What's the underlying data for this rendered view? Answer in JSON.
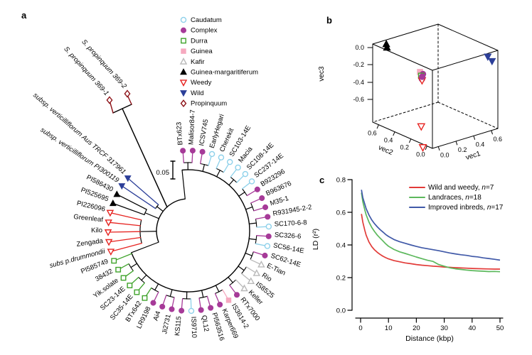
{
  "figure": {
    "panel_a": "a",
    "panel_b": "b",
    "panel_c": "c"
  },
  "legend_groups": [
    {
      "id": "caudatum",
      "label": "Caudatum",
      "shape": "circle",
      "filled": false,
      "color": "#8ed1ea"
    },
    {
      "id": "complex",
      "label": "Complex",
      "shape": "circle",
      "filled": true,
      "color": "#a63a98"
    },
    {
      "id": "durra",
      "label": "Durra",
      "shape": "square",
      "filled": false,
      "color": "#3fa32b"
    },
    {
      "id": "guinea",
      "label": "Guinea",
      "shape": "square",
      "filled": true,
      "color": "#f6a9bf"
    },
    {
      "id": "kafir",
      "label": "Kafir",
      "shape": "triangle",
      "filled": false,
      "color": "#b9b9b9"
    },
    {
      "id": "margaritiferum",
      "label": "Guinea-margaritiferum",
      "shape": "triangle",
      "filled": true,
      "color": "#000000"
    },
    {
      "id": "weedy",
      "label": "Weedy",
      "shape": "triangle-down",
      "filled": false,
      "color": "#e62320"
    },
    {
      "id": "wild",
      "label": "Wild",
      "shape": "triangle-down",
      "filled": true,
      "color": "#2c3f99"
    },
    {
      "id": "propinquum",
      "label": "Propinquum",
      "shape": "diamond",
      "filled": false,
      "color": "#8c1016"
    }
  ],
  "chart_data": [
    {
      "type": "tree-circular",
      "panel": "a",
      "scale_bar": "0.05",
      "tips": [
        {
          "name": "BTx623",
          "group": "complex"
        },
        {
          "name": "Malisor84-7",
          "group": "complex"
        },
        {
          "name": "ICSV745",
          "group": "complex"
        },
        {
          "name": "EarlyHegari",
          "group": "caudatum"
        },
        {
          "name": "Cherekit",
          "group": "caudatum"
        },
        {
          "name": "SC103-14E",
          "group": "caudatum"
        },
        {
          "name": "Macia",
          "group": "caudatum"
        },
        {
          "name": "SC108-14E",
          "group": "caudatum"
        },
        {
          "name": "SC237-14E",
          "group": "caudatum"
        },
        {
          "name": "B923296",
          "group": "complex"
        },
        {
          "name": "B963676",
          "group": "complex"
        },
        {
          "name": "M35-1",
          "group": "complex"
        },
        {
          "name": "R931945-2-2",
          "group": "complex"
        },
        {
          "name": "SC170-6-8",
          "group": "caudatum"
        },
        {
          "name": "SC326-6",
          "group": "complex"
        },
        {
          "name": "SC56-14E",
          "group": "caudatum"
        },
        {
          "name": "SC62-14E",
          "group": "complex"
        },
        {
          "name": "E-Tian",
          "group": "kafir"
        },
        {
          "name": "Rio",
          "group": "kafir"
        },
        {
          "name": "IS8525",
          "group": "kafir"
        },
        {
          "name": "Keller",
          "group": "kafir"
        },
        {
          "name": "RTx7000",
          "group": "complex"
        },
        {
          "name": "IS3614-2",
          "group": "guinea"
        },
        {
          "name": "Karper669",
          "group": "complex"
        },
        {
          "name": "PI563516",
          "group": "complex"
        },
        {
          "name": "QL12",
          "group": "complex"
        },
        {
          "name": "IS9710",
          "group": "caudatum"
        },
        {
          "name": "KS115",
          "group": "complex"
        },
        {
          "name": "Ji2731",
          "group": "complex"
        },
        {
          "name": "Ai4",
          "group": "complex"
        },
        {
          "name": "LR9198",
          "group": "complex"
        },
        {
          "name": "BTx642",
          "group": "durra"
        },
        {
          "name": "SC35-14E",
          "group": "durra"
        },
        {
          "name": "SC23-14E",
          "group": "durra"
        },
        {
          "name": "Yik.solate",
          "group": "durra"
        },
        {
          "name": "38432",
          "group": "durra"
        },
        {
          "name": "PI585749",
          "group": "durra"
        },
        {
          "name": "subs p.drummondii",
          "group": "weedy",
          "italic": true
        },
        {
          "name": "Zengada",
          "group": "weedy"
        },
        {
          "name": "Kilo",
          "group": "weedy"
        },
        {
          "name": "Greenleaf",
          "group": "weedy"
        },
        {
          "name": "PI226096",
          "group": "weedy"
        },
        {
          "name": "PI525695",
          "group": "margaritiferum"
        },
        {
          "name": "PI586430",
          "group": "margaritiferum"
        },
        {
          "name": "subsp. verticilliflorum PI300119",
          "group": "wild",
          "italic": true
        },
        {
          "name": "subsp. verticilliflorum Aus TRCF 317961",
          "group": "wild",
          "italic": true
        }
      ],
      "outgroup": [
        {
          "name": "S. propinquum 369-1",
          "group": "propinquum",
          "italic": true
        },
        {
          "name": "S. propinquum 369-2",
          "group": "propinquum",
          "italic": true
        }
      ]
    },
    {
      "type": "scatter3d",
      "panel": "b",
      "axes": {
        "vec1": {
          "label": "vec1",
          "ticks": [
            "0.0",
            "0.2",
            "0.4",
            "0.6"
          ]
        },
        "vec2": {
          "label": "vec2",
          "ticks": [
            "0.6",
            "0.4",
            "0.2",
            "0.0"
          ]
        },
        "vec3": {
          "label": "vec3",
          "ticks": [
            "0.0",
            "-0.2",
            "-0.4",
            "-0.6"
          ]
        }
      },
      "points": [
        {
          "group": "margaritiferum",
          "v": [
            0.02,
            0.6,
            0.1
          ]
        },
        {
          "group": "margaritiferum",
          "v": [
            0.0,
            0.57,
            0.08
          ]
        },
        {
          "group": "wild",
          "v": [
            0.62,
            0.0,
            0.02
          ]
        },
        {
          "group": "wild",
          "v": [
            0.65,
            -0.02,
            -0.03
          ]
        },
        {
          "group": "guinea",
          "v": [
            0.045,
            0.21,
            -0.06
          ]
        },
        {
          "group": "complex",
          "v": [
            0.06,
            0.19,
            -0.08
          ]
        },
        {
          "group": "durra",
          "v": [
            0.05,
            0.2,
            -0.1
          ]
        },
        {
          "group": "complex",
          "v": [
            0.035,
            0.175,
            -0.12
          ]
        },
        {
          "group": "weedy",
          "v": [
            0.05,
            0.19,
            -0.145
          ]
        },
        {
          "group": "complex",
          "v": [
            0.065,
            0.205,
            -0.115
          ]
        },
        {
          "group": "weedy",
          "v": [
            0.05,
            0.2,
            -0.65
          ]
        },
        {
          "group": "weedy",
          "v": [
            0.05,
            0.18,
            -0.87
          ]
        }
      ]
    },
    {
      "type": "line",
      "panel": "c",
      "xlabel": "Distance (kbp)",
      "ylabel": "LD (r²)",
      "xlim": [
        0,
        50
      ],
      "ylim": [
        0,
        0.8
      ],
      "xticks": [
        "0",
        "10",
        "20",
        "30",
        "40",
        "50"
      ],
      "yticks": [
        "0.0",
        "0.2",
        "0.4",
        "0.6",
        "0.8"
      ],
      "legend_position": "top-right",
      "series": [
        {
          "name": "Wild and weedy",
          "n": "7",
          "color": "#e23b38",
          "points": [
            [
              0.3,
              0.59
            ],
            [
              0.8,
              0.54
            ],
            [
              1.5,
              0.49
            ],
            [
              2,
              0.46
            ],
            [
              3,
              0.418
            ],
            [
              4,
              0.39
            ],
            [
              5,
              0.37
            ],
            [
              6,
              0.355
            ],
            [
              7,
              0.342
            ],
            [
              8,
              0.331
            ],
            [
              9,
              0.322
            ],
            [
              10,
              0.315
            ],
            [
              12,
              0.304
            ],
            [
              14,
              0.297
            ],
            [
              16,
              0.29
            ],
            [
              18,
              0.285
            ],
            [
              20,
              0.28
            ],
            [
              22,
              0.276
            ],
            [
              24,
              0.273
            ],
            [
              26,
              0.27
            ],
            [
              28,
              0.268
            ],
            [
              30,
              0.265
            ],
            [
              32,
              0.263
            ],
            [
              34,
              0.261
            ],
            [
              36,
              0.259
            ],
            [
              38,
              0.258
            ],
            [
              40,
              0.256
            ],
            [
              42,
              0.255
            ],
            [
              44,
              0.254
            ],
            [
              46,
              0.253
            ],
            [
              48,
              0.252
            ],
            [
              50,
              0.252
            ]
          ]
        },
        {
          "name": "Landraces",
          "n": "18",
          "color": "#5cb85c",
          "points": [
            [
              0.3,
              0.72
            ],
            [
              0.8,
              0.665
            ],
            [
              1.5,
              0.615
            ],
            [
              2,
              0.585
            ],
            [
              3,
              0.54
            ],
            [
              4,
              0.507
            ],
            [
              5,
              0.482
            ],
            [
              6,
              0.46
            ],
            [
              7,
              0.442
            ],
            [
              8,
              0.425
            ],
            [
              9,
              0.407
            ],
            [
              10,
              0.392
            ],
            [
              12,
              0.372
            ],
            [
              14,
              0.358
            ],
            [
              16,
              0.348
            ],
            [
              18,
              0.337
            ],
            [
              20,
              0.326
            ],
            [
              22,
              0.316
            ],
            [
              24,
              0.306
            ],
            [
              26,
              0.299
            ],
            [
              28,
              0.28
            ],
            [
              30,
              0.27
            ],
            [
              32,
              0.26
            ],
            [
              34,
              0.254
            ],
            [
              36,
              0.25
            ],
            [
              38,
              0.246
            ],
            [
              40,
              0.243
            ],
            [
              42,
              0.241
            ],
            [
              44,
              0.239
            ],
            [
              46,
              0.237
            ],
            [
              48,
              0.238
            ],
            [
              50,
              0.236
            ]
          ]
        },
        {
          "name": "Improved inbreds",
          "n": "17",
          "color": "#4059a8",
          "points": [
            [
              0.3,
              0.738
            ],
            [
              0.8,
              0.69
            ],
            [
              1.5,
              0.65
            ],
            [
              2,
              0.622
            ],
            [
              3,
              0.583
            ],
            [
              4,
              0.553
            ],
            [
              5,
              0.53
            ],
            [
              6,
              0.511
            ],
            [
              7,
              0.494
            ],
            [
              8,
              0.479
            ],
            [
              9,
              0.464
            ],
            [
              10,
              0.452
            ],
            [
              12,
              0.433
            ],
            [
              14,
              0.42
            ],
            [
              16,
              0.41
            ],
            [
              18,
              0.4
            ],
            [
              20,
              0.391
            ],
            [
              22,
              0.383
            ],
            [
              24,
              0.377
            ],
            [
              26,
              0.371
            ],
            [
              28,
              0.365
            ],
            [
              30,
              0.358
            ],
            [
              32,
              0.351
            ],
            [
              34,
              0.345
            ],
            [
              36,
              0.34
            ],
            [
              38,
              0.336
            ],
            [
              40,
              0.33
            ],
            [
              42,
              0.327
            ],
            [
              44,
              0.321
            ],
            [
              46,
              0.317
            ],
            [
              48,
              0.312
            ],
            [
              50,
              0.307
            ]
          ]
        }
      ]
    }
  ]
}
